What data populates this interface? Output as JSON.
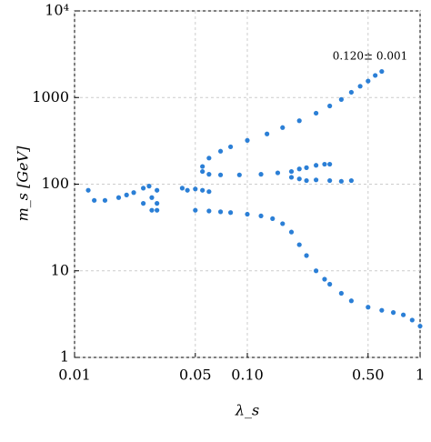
{
  "chart_data": {
    "type": "scatter",
    "x_label": "λ_s",
    "y_label": "m_s [GeV]",
    "annotation": "0.120± 0.001",
    "log_x": true,
    "log_y": true,
    "grid": true,
    "xlim": [
      0.01,
      1
    ],
    "ylim": [
      1,
      10000
    ],
    "xticks": [
      0.01,
      0.05,
      {
        "value": 0.1,
        "label": "0.10"
      },
      {
        "value": 0.5,
        "label": "0.50"
      },
      1
    ],
    "yticks": [
      1,
      10,
      100,
      1000,
      {
        "value": 10000,
        "label": "10⁴"
      }
    ],
    "series": [
      {
        "name": "points",
        "color": "#2b7fd6",
        "x": [
          0.055,
          0.06,
          0.07,
          0.08,
          0.1,
          0.13,
          0.16,
          0.2,
          0.25,
          0.3,
          0.35,
          0.4,
          0.45,
          0.5,
          0.55,
          0.6,
          0.055,
          0.06,
          0.07,
          0.09,
          0.12,
          0.15,
          0.18,
          0.2,
          0.22,
          0.25,
          0.28,
          0.3,
          0.18,
          0.2,
          0.22,
          0.25,
          0.3,
          0.35,
          0.4,
          0.012,
          0.013,
          0.015,
          0.018,
          0.02,
          0.022,
          0.025,
          0.025,
          0.027,
          0.028,
          0.028,
          0.03,
          0.03,
          0.03,
          0.042,
          0.045,
          0.05,
          0.055,
          0.06,
          0.05,
          0.06,
          0.07,
          0.08,
          0.1,
          0.12,
          0.14,
          0.16,
          0.18,
          0.2,
          0.22,
          0.25,
          0.28,
          0.3,
          0.35,
          0.4,
          0.5,
          0.6,
          0.7,
          0.8,
          0.9,
          1.0
        ],
        "values": [
          160,
          200,
          240,
          270,
          320,
          380,
          450,
          540,
          660,
          800,
          950,
          1150,
          1350,
          1550,
          1800,
          2000,
          140,
          130,
          128,
          128,
          130,
          135,
          140,
          150,
          155,
          165,
          170,
          170,
          120,
          115,
          110,
          112,
          110,
          108,
          110,
          85,
          65,
          65,
          70,
          75,
          80,
          90,
          60,
          95,
          70,
          50,
          85,
          60,
          50,
          90,
          85,
          88,
          85,
          82,
          50,
          49,
          48,
          47,
          45,
          43,
          40,
          35,
          28,
          20,
          15,
          10,
          8,
          7,
          5.5,
          4.5,
          3.8,
          3.5,
          3.3,
          3.1,
          2.7,
          2.3
        ]
      }
    ]
  }
}
